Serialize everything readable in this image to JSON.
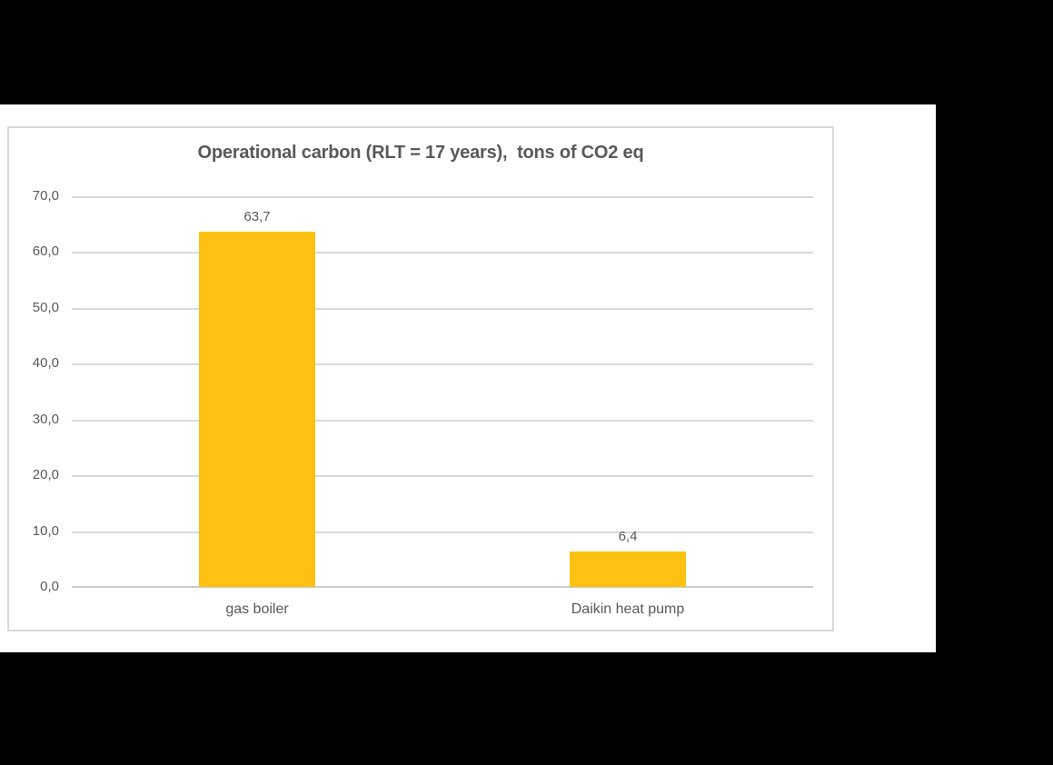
{
  "window": {
    "background_color": "#000000",
    "canvas_color": "#FFFFFF",
    "frame_border_color": "#D9D9D9"
  },
  "chart_data": {
    "type": "bar",
    "title": "Operational carbon (RLT = 17 years),  tons of CO2 eq",
    "xlabel": "",
    "ylabel": "",
    "categories": [
      "gas boiler",
      "Daikin heat pump"
    ],
    "values": [
      63.7,
      6.4
    ],
    "value_labels": [
      "63,7",
      "6,4"
    ],
    "y_ticks": [
      {
        "value": 0,
        "label": "0,0"
      },
      {
        "value": 10,
        "label": "10,0"
      },
      {
        "value": 20,
        "label": "20,0"
      },
      {
        "value": 30,
        "label": "30,0"
      },
      {
        "value": 40,
        "label": "40,0"
      },
      {
        "value": 50,
        "label": "50,0"
      },
      {
        "value": 60,
        "label": "60,0"
      },
      {
        "value": 70,
        "label": "70,0"
      }
    ],
    "ylim": [
      0,
      70
    ],
    "grid": true,
    "legend_position": "none",
    "bar_color": "#FDC111",
    "text_color": "#595959",
    "gridline_color": "#D9D9D9",
    "axis_line_color": "#CCCCCC"
  }
}
